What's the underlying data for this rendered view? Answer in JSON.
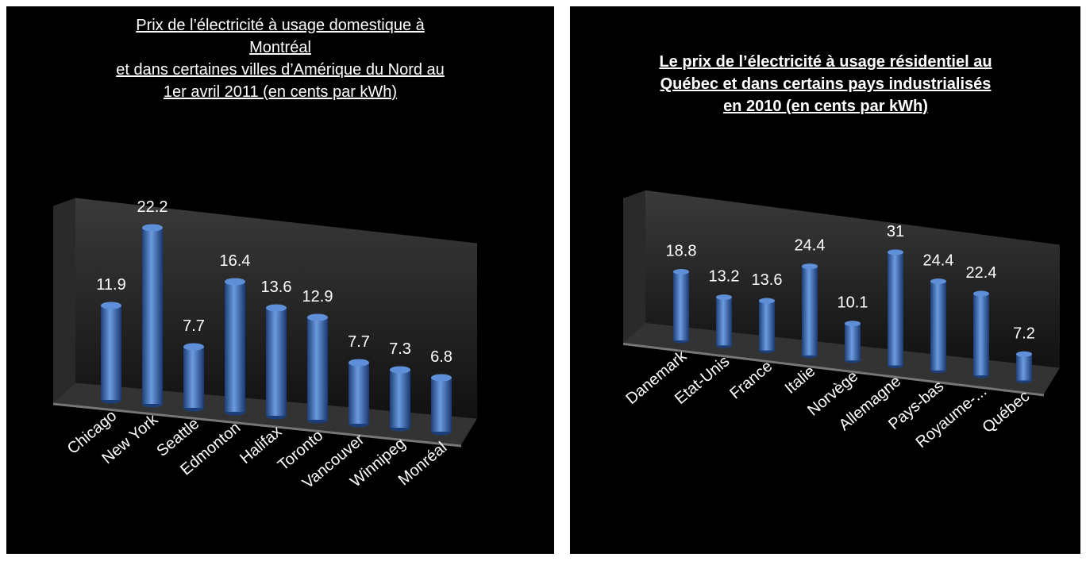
{
  "chart_data": [
    {
      "type": "bar",
      "title": [
        "Prix de l’électricité à usage domestique à",
        "Montréal",
        "et dans certaines villes d’Amérique du Nord au",
        "1er avril 2011 (en cents par kWh)"
      ],
      "categories": [
        "Chicago",
        "New York",
        "Seattle",
        "Edmonton",
        "Halifax",
        "Toronto",
        "Vancouver",
        "Winnipeg",
        "Monréal"
      ],
      "values": [
        11.9,
        22.2,
        7.7,
        16.4,
        13.6,
        12.9,
        7.7,
        7.3,
        6.8
      ],
      "color": "#4a7fd0",
      "ylim": [
        0,
        25
      ],
      "title_bold": false
    },
    {
      "type": "bar",
      "title": [
        "Le prix de l’électricité à usage résidentiel au",
        "Québec et dans certains pays industrialisés",
        "en 2010 (en cents par kWh)"
      ],
      "categories": [
        "Danemark",
        "Etat-Unis",
        "France",
        "Italie",
        "Norvège",
        "Allemagne",
        "Pays-bas",
        "Royaume-...",
        "Québec"
      ],
      "values": [
        18.8,
        13.2,
        13.6,
        24.4,
        10.1,
        31,
        24.4,
        22.4,
        7.2
      ],
      "color": "#4a7fd0",
      "ylim": [
        0,
        40
      ],
      "title_bold": true
    }
  ]
}
